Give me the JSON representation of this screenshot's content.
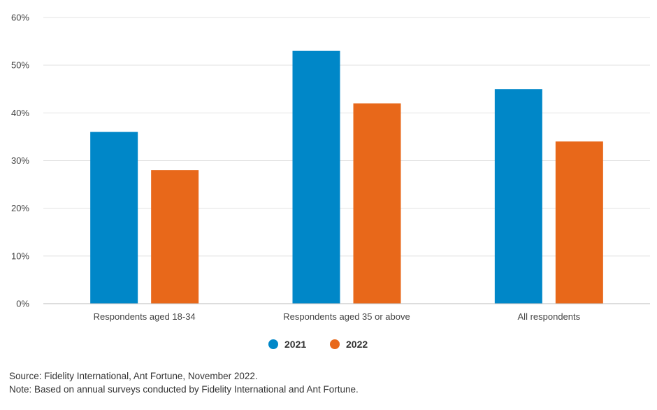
{
  "chart_data": {
    "type": "bar",
    "categories": [
      "Respondents aged 18-34",
      "Respondents aged 35 or above",
      "All respondents"
    ],
    "series": [
      {
        "name": "2021",
        "values": [
          36,
          53,
          45
        ],
        "color": "#0087c8"
      },
      {
        "name": "2022",
        "values": [
          28,
          42,
          34
        ],
        "color": "#e8681a"
      }
    ],
    "y_ticks": [
      "0%",
      "10%",
      "20%",
      "30%",
      "40%",
      "50%",
      "60%"
    ],
    "ylim": [
      0,
      60
    ],
    "y_unit": "%",
    "grid": true,
    "legend_position": "bottom-center"
  },
  "footer": {
    "source": "Source: Fidelity International, Ant Fortune, November 2022.",
    "note": "Note: Based on annual surveys conducted by Fidelity International and Ant Fortune."
  }
}
